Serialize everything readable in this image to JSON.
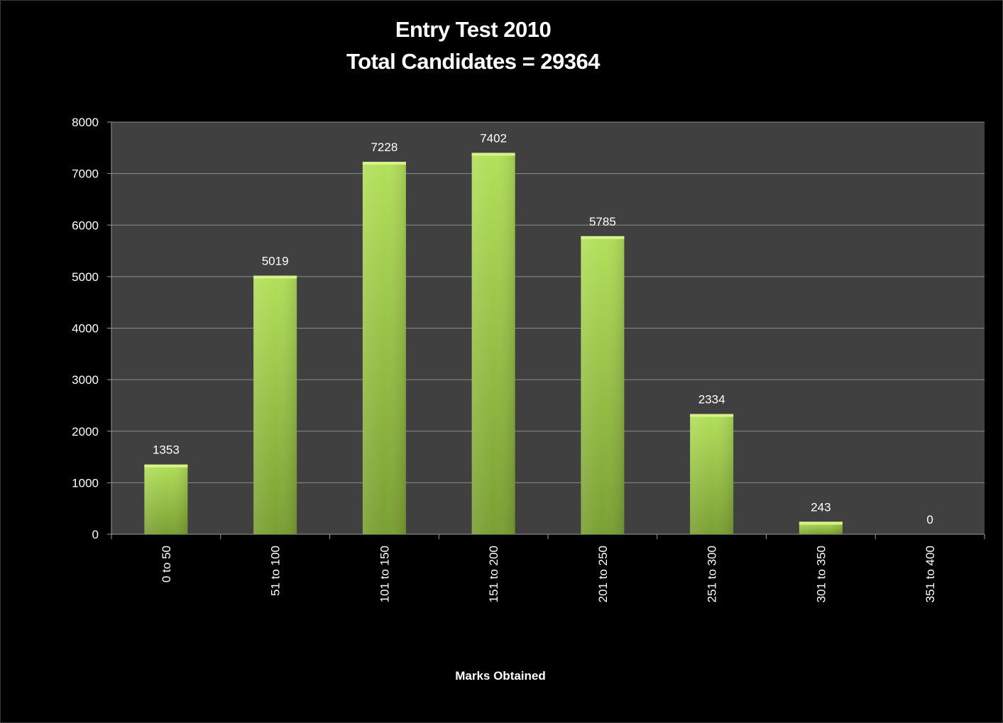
{
  "chart_data": {
    "type": "bar",
    "title_lines": [
      "Entry Test 2010",
      "Total Candidates  = 29364"
    ],
    "xlabel": "Marks Obtained",
    "ylabel": "",
    "categories": [
      "0 to 50",
      "51 to 100",
      "101 to 150",
      "151 to 200",
      "201 to 250",
      "251 to 300",
      "301 to 350",
      "351 to 400"
    ],
    "values": [
      1353,
      5019,
      7228,
      7402,
      5785,
      2334,
      243,
      0
    ],
    "data_labels": [
      "1353",
      "5019",
      "7228",
      "7402",
      "5785",
      "2334",
      "243",
      "0"
    ],
    "ylim": [
      0,
      8000
    ],
    "yticks": [
      0,
      1000,
      2000,
      3000,
      4000,
      5000,
      6000,
      7000,
      8000
    ],
    "ytick_labels": [
      "0",
      "1000",
      "2000",
      "3000",
      "4000",
      "5000",
      "6000",
      "7000",
      "8000"
    ],
    "grid": true,
    "legend": "none",
    "colors": {
      "bar": "#9acd32",
      "plot_background": "#404040",
      "background": "#000000",
      "gridline": "#8c8c8c",
      "text": "#ffffff"
    }
  }
}
